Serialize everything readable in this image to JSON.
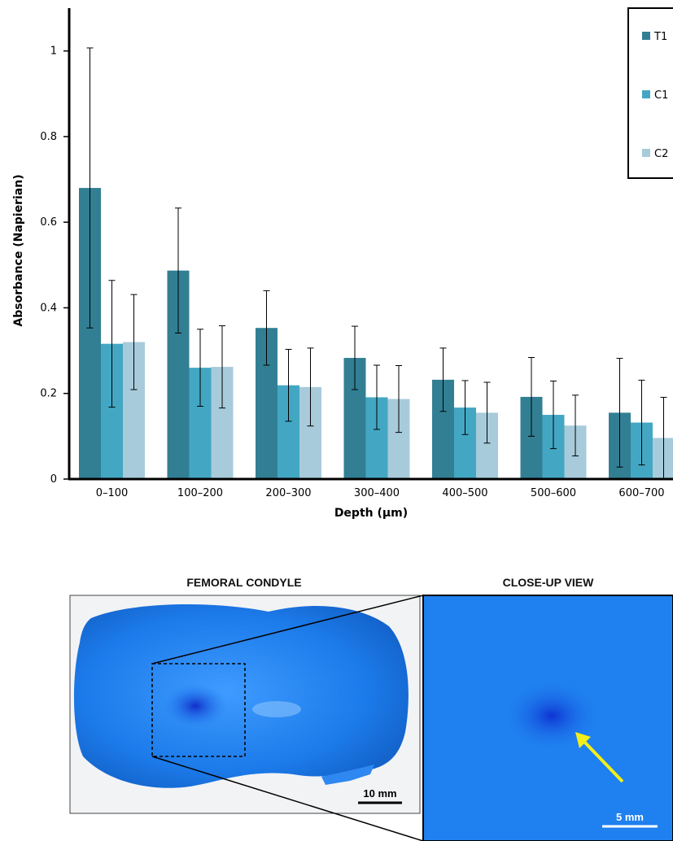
{
  "chart_data": {
    "type": "bar",
    "categories": [
      "0–100",
      "100–200",
      "200–300",
      "300–400",
      "400–500",
      "500–600",
      "600–700"
    ],
    "series": [
      {
        "name": "T1",
        "color": "#327f94",
        "values": [
          0.68,
          0.487,
          0.353,
          0.283,
          0.232,
          0.192,
          0.155
        ],
        "errors": [
          0.327,
          0.146,
          0.087,
          0.074,
          0.074,
          0.092,
          0.127
        ]
      },
      {
        "name": "C1",
        "color": "#43a7c3",
        "values": [
          0.316,
          0.26,
          0.219,
          0.191,
          0.167,
          0.15,
          0.132
        ],
        "errors": [
          0.148,
          0.09,
          0.084,
          0.075,
          0.063,
          0.079,
          0.099
        ]
      },
      {
        "name": "C2",
        "color": "#a7cbdb",
        "values": [
          0.32,
          0.262,
          0.215,
          0.187,
          0.155,
          0.125,
          0.096
        ],
        "errors": [
          0.111,
          0.096,
          0.091,
          0.078,
          0.071,
          0.071,
          0.095
        ]
      }
    ],
    "xlabel": "Depth (μm)",
    "ylabel": "Absorbance (Napierian)",
    "ylim": [
      0,
      1.1
    ],
    "yticks": [
      0,
      0.2,
      0.4,
      0.6,
      0.8,
      1
    ],
    "ytick_labels": [
      "0",
      "0.2",
      "0.4",
      "0.6",
      "0.8",
      "1"
    ],
    "grid": false,
    "legend_position": "top-right"
  },
  "photos": {
    "left_title": "FEMORAL CONDYLE",
    "right_title": "CLOSE-UP VIEW",
    "left_scale_label": "10 mm",
    "right_scale_label": "5 mm",
    "tissue_color": "#1e7ff0",
    "stain_color": "#0f2fcc",
    "arrow_color": "#f2ef1a"
  }
}
